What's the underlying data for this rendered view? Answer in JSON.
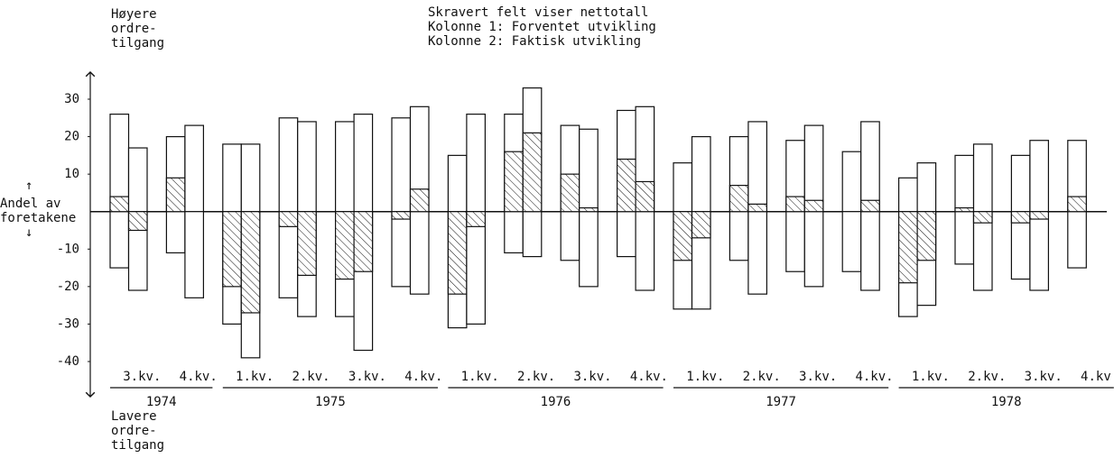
{
  "chart_data": {
    "type": "bar",
    "legend_lines": [
      "Skravert felt viser nettotall",
      "Kolonne 1:  Forventet utvikling",
      "Kolonne 2:  Faktisk utvikling"
    ],
    "top_label": [
      "Høyere",
      "ordre-",
      "tilgang"
    ],
    "side_label": [
      "Andel av",
      "foretakene"
    ],
    "bottom_label": [
      "Lavere",
      "ordre-",
      "tilgang"
    ],
    "ylim": [
      -40,
      30
    ],
    "yticks": [
      30,
      20,
      10,
      -10,
      -20,
      -30,
      -40
    ],
    "years": [
      {
        "label": "1974",
        "quarters": [
          {
            "label": "3.kv.",
            "columns": [
              {
                "up": 26,
                "down": -15,
                "net": 4
              },
              {
                "up": 17,
                "down": -21,
                "net": -5
              }
            ]
          },
          {
            "label": "4.kv.",
            "columns": [
              {
                "up": 20,
                "down": -11,
                "net": 9
              },
              {
                "up": 23,
                "down": -23,
                "net": 0
              }
            ]
          }
        ]
      },
      {
        "label": "1975",
        "quarters": [
          {
            "label": "1.kv.",
            "columns": [
              {
                "up": 18,
                "down": -30,
                "net": -20
              },
              {
                "up": 18,
                "down": -39,
                "net": -27
              }
            ]
          },
          {
            "label": "2.kv.",
            "columns": [
              {
                "up": 25,
                "down": -23,
                "net": -4
              },
              {
                "up": 24,
                "down": -28,
                "net": -17
              }
            ]
          },
          {
            "label": "3.kv.",
            "columns": [
              {
                "up": 24,
                "down": -28,
                "net": -18
              },
              {
                "up": 26,
                "down": -37,
                "net": -16
              }
            ]
          },
          {
            "label": "4.kv.",
            "columns": [
              {
                "up": 25,
                "down": -20,
                "net": -2
              },
              {
                "up": 28,
                "down": -22,
                "net": 6
              }
            ]
          }
        ]
      },
      {
        "label": "1976",
        "quarters": [
          {
            "label": "1.kv.",
            "columns": [
              {
                "up": 15,
                "down": -31,
                "net": -22
              },
              {
                "up": 26,
                "down": -30,
                "net": -4
              }
            ]
          },
          {
            "label": "2.kv.",
            "columns": [
              {
                "up": 26,
                "down": -11,
                "net": 16
              },
              {
                "up": 33,
                "down": -12,
                "net": 21
              }
            ]
          },
          {
            "label": "3.kv.",
            "columns": [
              {
                "up": 23,
                "down": -13,
                "net": 10
              },
              {
                "up": 22,
                "down": -20,
                "net": 1
              }
            ]
          },
          {
            "label": "4.kv.",
            "columns": [
              {
                "up": 27,
                "down": -12,
                "net": 14
              },
              {
                "up": 28,
                "down": -21,
                "net": 8
              }
            ]
          }
        ]
      },
      {
        "label": "1977",
        "quarters": [
          {
            "label": "1.kv.",
            "columns": [
              {
                "up": 13,
                "down": -26,
                "net": -13
              },
              {
                "up": 20,
                "down": -26,
                "net": -7
              }
            ]
          },
          {
            "label": "2.kv.",
            "columns": [
              {
                "up": 20,
                "down": -13,
                "net": 7
              },
              {
                "up": 24,
                "down": -22,
                "net": 2
              }
            ]
          },
          {
            "label": "3.kv.",
            "columns": [
              {
                "up": 19,
                "down": -16,
                "net": 4
              },
              {
                "up": 23,
                "down": -20,
                "net": 3
              }
            ]
          },
          {
            "label": "4.kv.",
            "columns": [
              {
                "up": 16,
                "down": -16,
                "net": 0
              },
              {
                "up": 24,
                "down": -21,
                "net": 3
              }
            ]
          }
        ]
      },
      {
        "label": "1978",
        "quarters": [
          {
            "label": "1.kv.",
            "columns": [
              {
                "up": 9,
                "down": -28,
                "net": -19
              },
              {
                "up": 13,
                "down": -25,
                "net": -13
              }
            ]
          },
          {
            "label": "2.kv.",
            "columns": [
              {
                "up": 15,
                "down": -14,
                "net": 1
              },
              {
                "up": 18,
                "down": -21,
                "net": -3
              }
            ]
          },
          {
            "label": "3.kv.",
            "columns": [
              {
                "up": 15,
                "down": -18,
                "net": -3
              },
              {
                "up": 19,
                "down": -21,
                "net": -2
              }
            ]
          },
          {
            "label": "4.kv.",
            "columns": [
              {
                "up": 19,
                "down": -15,
                "net": 4
              }
            ]
          }
        ]
      }
    ]
  }
}
